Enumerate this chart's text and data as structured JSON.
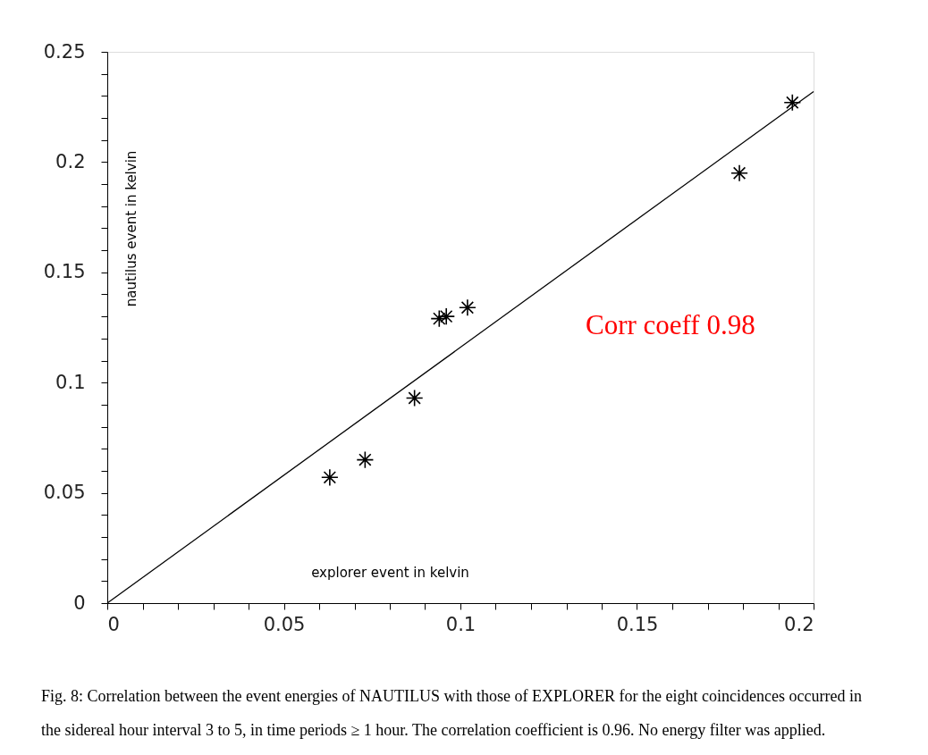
{
  "chart_data": {
    "type": "scatter",
    "xlabel": "explorer event in kelvin",
    "ylabel": "nautilus event in kelvin",
    "annotations": [
      "Corr coeff   0.98",
      "Fig. 8: Correlation between the event energies of NAUTILUS with those of EXPLORER for the eight coincidences occurred in",
      "the sidereal hour interval 3 to 5, in time periods ≥ 1 hour. The correlation coefficient is 0.96. No energy filter was applied."
    ],
    "x": [
      0.063,
      0.073,
      0.087,
      0.094,
      0.096,
      0.102,
      0.179,
      0.194
    ],
    "series": [
      {
        "color": "#000000",
        "values": [
          0.057,
          0.065,
          0.093,
          0.129,
          0.13,
          0.134,
          0.195,
          0.227
        ]
      },
      {
        "type": "line",
        "color": "#000000",
        "marker": "none",
        "x": [
          0,
          0.2
        ],
        "values": [
          0,
          0.232
        ]
      }
    ],
    "marker": "cross",
    "line_style": "solid",
    "grid": false,
    "xlim": [
      0,
      0.2
    ],
    "ylim": [
      0,
      0.25
    ],
    "xticks": [
      0,
      {
        "value": 0.01,
        "label": null
      },
      {
        "value": 0.02,
        "label": null
      },
      {
        "value": 0.03,
        "label": null
      },
      {
        "value": 0.04,
        "label": null
      },
      0.05,
      {
        "value": 0.06,
        "label": null
      },
      {
        "value": 0.07,
        "label": null
      },
      {
        "value": 0.08,
        "label": null
      },
      {
        "value": 0.09,
        "label": null
      },
      0.1,
      {
        "value": 0.11,
        "label": null
      },
      {
        "value": 0.12,
        "label": null
      },
      {
        "value": 0.13,
        "label": null
      },
      {
        "value": 0.14,
        "label": null
      },
      0.15,
      {
        "value": 0.16,
        "label": null
      },
      {
        "value": 0.17,
        "label": null
      },
      {
        "value": 0.18,
        "label": null
      },
      {
        "value": 0.19,
        "label": null
      },
      0.2
    ],
    "yticks": [
      0,
      {
        "value": 0.01,
        "label": null
      },
      {
        "value": 0.02,
        "label": null
      },
      {
        "value": 0.03,
        "label": null
      },
      {
        "value": 0.04,
        "label": null
      },
      0.05,
      {
        "value": 0.06,
        "label": null
      },
      {
        "value": 0.07,
        "label": null
      },
      {
        "value": 0.08,
        "label": null
      },
      {
        "value": 0.09,
        "label": null
      },
      0.1,
      {
        "value": 0.11,
        "label": null
      },
      {
        "value": 0.12,
        "label": null
      },
      {
        "value": 0.13,
        "label": null
      },
      {
        "value": 0.14,
        "label": null
      },
      0.15,
      {
        "value": 0.16,
        "label": null
      },
      {
        "value": 0.17,
        "label": null
      },
      {
        "value": 0.18,
        "label": null
      },
      {
        "value": 0.19,
        "label": null
      },
      0.2,
      {
        "value": 0.21,
        "label": null
      },
      {
        "value": 0.22,
        "label": null
      },
      {
        "value": 0.23,
        "label": null
      },
      {
        "value": 0.24,
        "label": null
      },
      0.25
    ]
  }
}
